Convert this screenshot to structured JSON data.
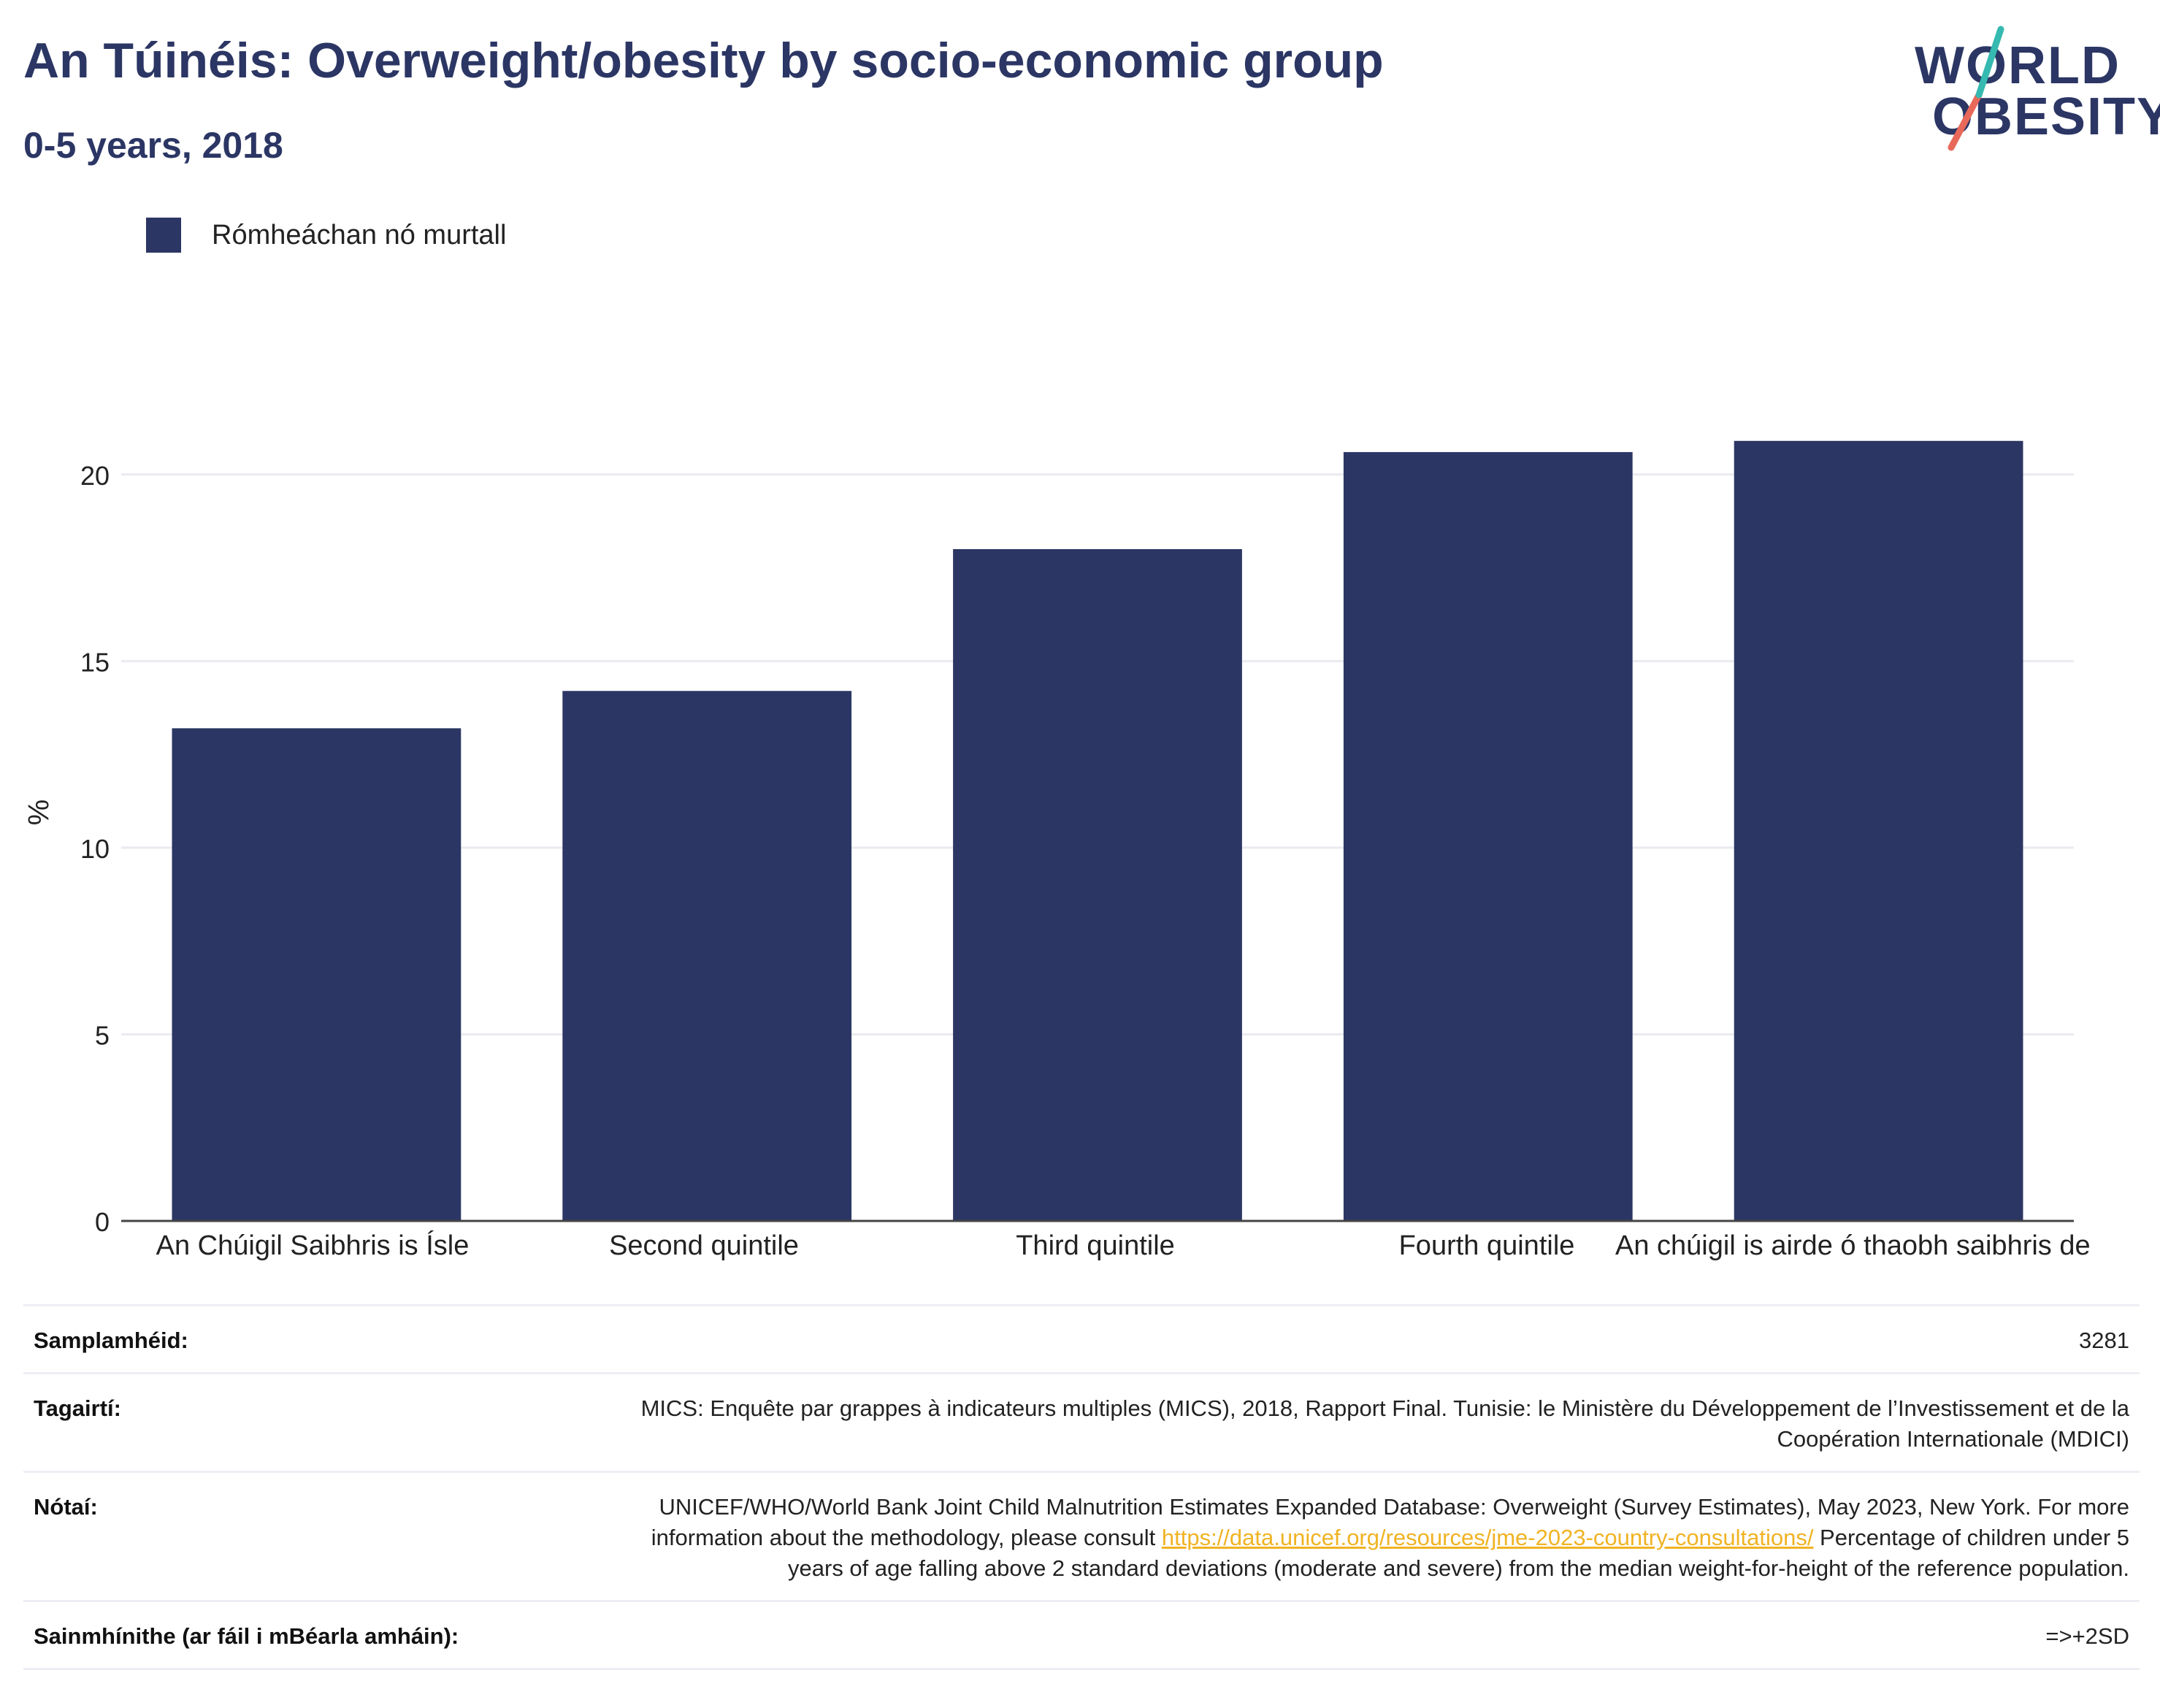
{
  "header": {
    "title": "An Túinéis: Overweight/obesity by socio-economic group",
    "subtitle": "0-5 years, 2018"
  },
  "logo": {
    "line1": "WORLD",
    "line2": "OBESITY"
  },
  "colors": {
    "bar": "#2b3664",
    "title": "#2b3664",
    "link": "#f0b323",
    "grid": "#e9ebf0"
  },
  "chart_data": {
    "type": "bar",
    "categories": [
      "An Chúigil Saibhris is Ísle",
      "Second quintile",
      "Third quintile",
      "Fourth quintile",
      "An chúigil is airde ó thaobh saibhris de"
    ],
    "series": [
      {
        "name": "Rómheáchan nó murtall",
        "values": [
          13.2,
          14.2,
          18.0,
          20.6,
          20.9
        ]
      }
    ],
    "ylabel": "%",
    "ylim": [
      0,
      22.5
    ],
    "yticks": [
      0,
      5,
      10,
      15,
      20
    ],
    "grid": true,
    "legend": "top-left"
  },
  "table": {
    "sample_label": "Samplamhéid:",
    "sample_value": "3281",
    "refs_label": "Tagairtí:",
    "refs_value": "MICS: Enquête par grappes à indicateurs multiples (MICS), 2018, Rapport Final. Tunisie: le Ministère du Développement de l’Investissement et de la Coopération Internationale (MDICI)",
    "notes_label": "Nótaí:",
    "notes_pre": "UNICEF/WHO/World Bank Joint Child Malnutrition Estimates Expanded Database: Overweight (Survey Estimates), May 2023, New York. For more information about the methodology, please consult ",
    "notes_link": "https://data.unicef.org/resources/jme-2023-country-consultations/",
    "notes_post": " Percentage of children under 5 years of age falling above 2 standard deviations (moderate and severe) from the median weight-for-height of the reference population.",
    "defs_label": "Sainmhínithe (ar fáil i mBéarla amháin):",
    "defs_value": "=>+2SD"
  }
}
